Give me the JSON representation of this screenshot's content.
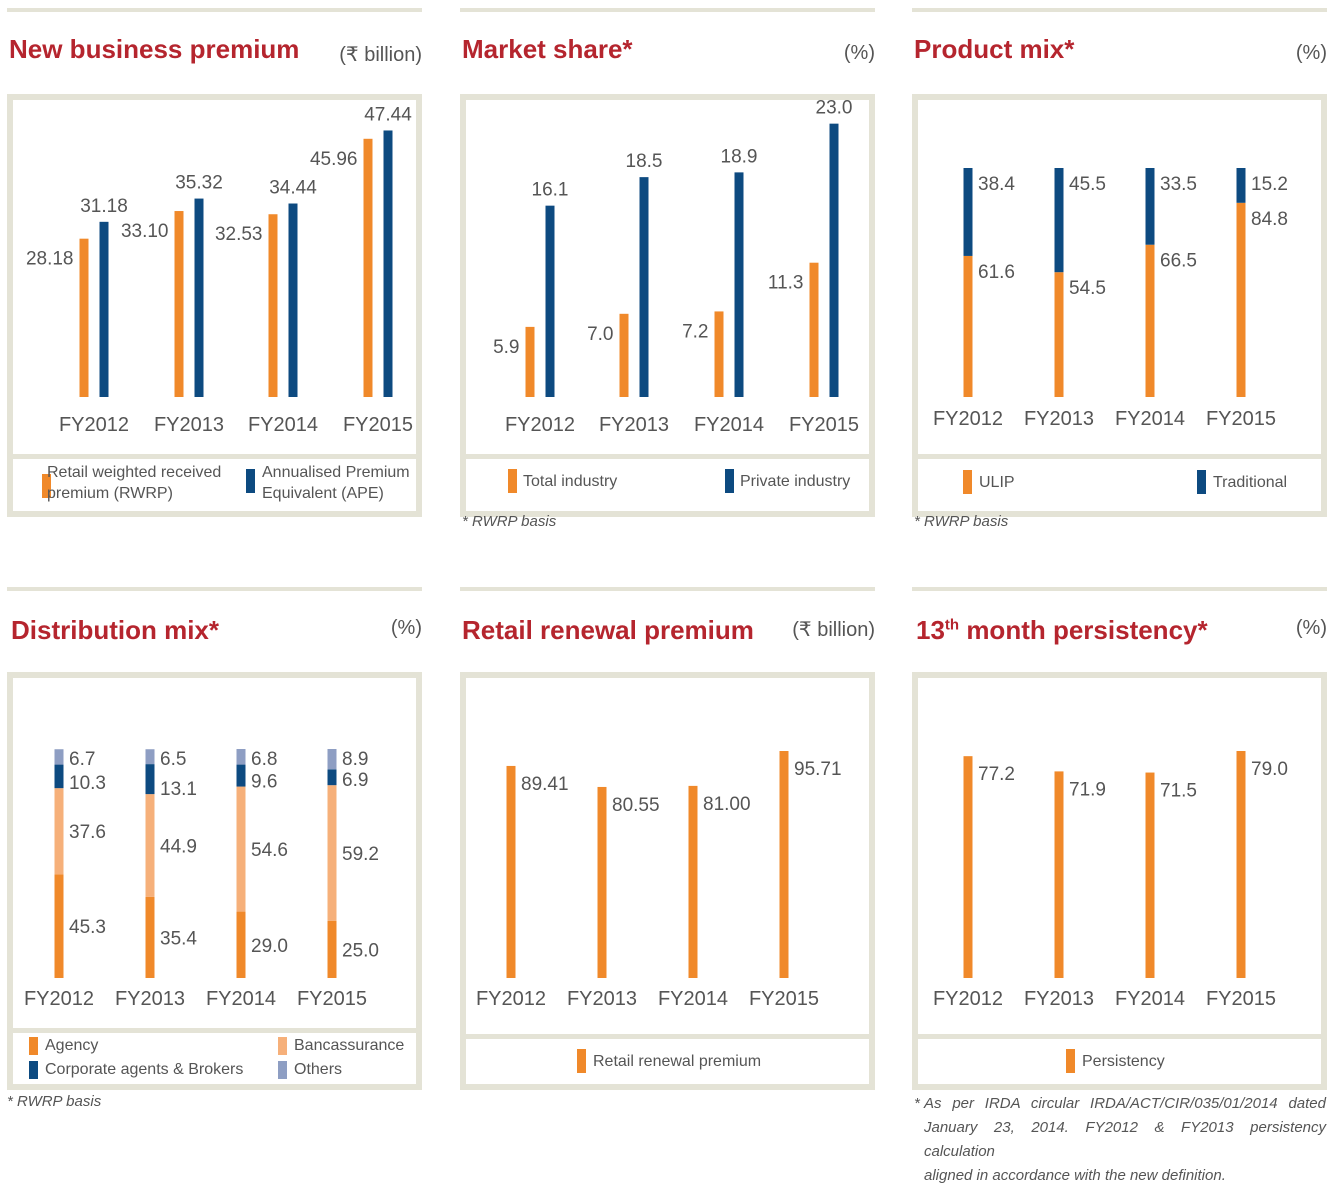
{
  "colors": {
    "orange": "#f0892a",
    "blue": "#0d4a80",
    "light_orange": "#f6b07a",
    "lavender": "#8e9ec3",
    "title_red": "#b5252e",
    "frame": "#e4e3d6"
  },
  "panels": [
    {
      "id": "new-business-premium",
      "title": "New business premium",
      "unit": "(₹ billion)",
      "legend": [
        {
          "label": "Retail weighted received premium (RWRP)",
          "color": "orange"
        },
        {
          "label": "Annualised Premium Equivalent (APE)",
          "color": "blue"
        }
      ],
      "footnote": ""
    },
    {
      "id": "market-share",
      "title": "Market share*",
      "unit": "(%)",
      "legend": [
        {
          "label": "Total industry",
          "color": "orange"
        },
        {
          "label": "Private industry",
          "color": "blue"
        }
      ],
      "footnote": "* RWRP basis"
    },
    {
      "id": "product-mix",
      "title": "Product mix*",
      "unit": "(%)",
      "legend": [
        {
          "label": "ULIP",
          "color": "orange"
        },
        {
          "label": "Traditional",
          "color": "blue"
        }
      ],
      "footnote": "* RWRP basis"
    },
    {
      "id": "distribution-mix",
      "title": "Distribution mix*",
      "unit": "(%)",
      "legend": [
        {
          "label": "Agency",
          "color": "orange"
        },
        {
          "label": "Bancassurance",
          "color": "light_orange"
        },
        {
          "label": "Corporate agents & Brokers",
          "color": "blue"
        },
        {
          "label": "Others",
          "color": "lavender"
        }
      ],
      "footnote": "* RWRP basis"
    },
    {
      "id": "retail-renewal-premium",
      "title": "Retail renewal premium",
      "unit": "(₹ billion)",
      "legend": [
        {
          "label": "Retail renewal premium",
          "color": "orange"
        }
      ],
      "footnote": ""
    },
    {
      "id": "persistency",
      "title_main": "13",
      "title_sup": "th",
      "title_rest": " month persistency*",
      "unit": "(%)",
      "legend": [
        {
          "label": "Persistency",
          "color": "orange"
        }
      ],
      "footnote_lines": [
        "As per IRDA circular IRDA/ACT/CIR/035/01/2014 dated",
        "January 23, 2014. FY2012 & FY2013 persistency calculation",
        "aligned in accordance with the new definition."
      ],
      "footnote_mark": "*"
    }
  ],
  "chart_data": [
    {
      "type": "bar",
      "title": "New business premium",
      "categories": [
        "FY2012",
        "FY2013",
        "FY2014",
        "FY2015"
      ],
      "series": [
        {
          "name": "Retail weighted received premium (RWRP)",
          "values": [
            28.18,
            33.1,
            32.53,
            45.96
          ],
          "labels": [
            "28.18",
            "33.10",
            "32.53",
            "45.96"
          ]
        },
        {
          "name": "Annualised Premium Equivalent (APE)",
          "values": [
            31.18,
            35.32,
            34.44,
            47.44
          ],
          "labels": [
            "31.18",
            "35.32",
            "34.44",
            "47.44"
          ]
        }
      ],
      "ylim": [
        0,
        55
      ]
    },
    {
      "type": "bar",
      "title": "Market share*",
      "categories": [
        "FY2012",
        "FY2013",
        "FY2014",
        "FY2015"
      ],
      "series": [
        {
          "name": "Total industry",
          "values": [
            5.9,
            7.0,
            7.2,
            11.3
          ],
          "labels": [
            "5.9",
            "7.0",
            "7.2",
            "11.3"
          ]
        },
        {
          "name": "Private industry",
          "values": [
            16.1,
            18.5,
            18.9,
            23.0
          ],
          "labels": [
            "16.1",
            "18.5",
            "18.9",
            "23.0"
          ]
        }
      ],
      "ylim": [
        0,
        26
      ]
    },
    {
      "type": "bar",
      "stacked": true,
      "title": "Product mix*",
      "categories": [
        "FY2012",
        "FY2013",
        "FY2014",
        "FY2015"
      ],
      "series": [
        {
          "name": "ULIP",
          "values": [
            61.6,
            54.5,
            66.5,
            84.8
          ],
          "labels": [
            "61.6",
            "54.5",
            "66.5",
            "84.8"
          ]
        },
        {
          "name": "Traditional",
          "values": [
            38.4,
            45.5,
            33.5,
            15.2
          ],
          "labels": [
            "38.4",
            "45.5",
            "33.5",
            "15.2"
          ]
        }
      ],
      "ylim": [
        0,
        100
      ]
    },
    {
      "type": "bar",
      "stacked": true,
      "title": "Distribution mix*",
      "categories": [
        "FY2012",
        "FY2013",
        "FY2014",
        "FY2015"
      ],
      "series": [
        {
          "name": "Agency",
          "values": [
            45.3,
            35.4,
            29.0,
            25.0
          ],
          "labels": [
            "45.3",
            "35.4",
            "29.0",
            "25.0"
          ]
        },
        {
          "name": "Bancassurance",
          "values": [
            37.6,
            44.9,
            54.6,
            59.2
          ],
          "labels": [
            "37.6",
            "44.9",
            "54.6",
            "59.2"
          ]
        },
        {
          "name": "Corporate agents & Brokers",
          "values": [
            10.3,
            13.1,
            9.6,
            6.9
          ],
          "labels": [
            "10.3",
            "13.1",
            "9.6",
            "6.9"
          ]
        },
        {
          "name": "Others",
          "values": [
            6.7,
            6.5,
            6.8,
            8.9
          ],
          "labels": [
            "6.7",
            "6.5",
            "6.8",
            "8.9"
          ]
        }
      ],
      "ylim": [
        0,
        100
      ]
    },
    {
      "type": "bar",
      "title": "Retail renewal premium",
      "categories": [
        "FY2012",
        "FY2013",
        "FY2014",
        "FY2015"
      ],
      "series": [
        {
          "name": "Retail renewal premium",
          "values": [
            89.41,
            80.55,
            81.0,
            95.71
          ],
          "labels": [
            "89.41",
            "80.55",
            "81.00",
            "95.71"
          ]
        }
      ],
      "ylim": [
        0,
        95.71
      ]
    },
    {
      "type": "bar",
      "title": "13th month persistency*",
      "categories": [
        "FY2012",
        "FY2013",
        "FY2014",
        "FY2015"
      ],
      "series": [
        {
          "name": "Persistency",
          "values": [
            77.2,
            71.9,
            71.5,
            79.0
          ],
          "labels": [
            "77.2",
            "71.9",
            "71.5",
            "79.0"
          ]
        }
      ],
      "ylim": [
        0,
        79.0
      ]
    }
  ]
}
